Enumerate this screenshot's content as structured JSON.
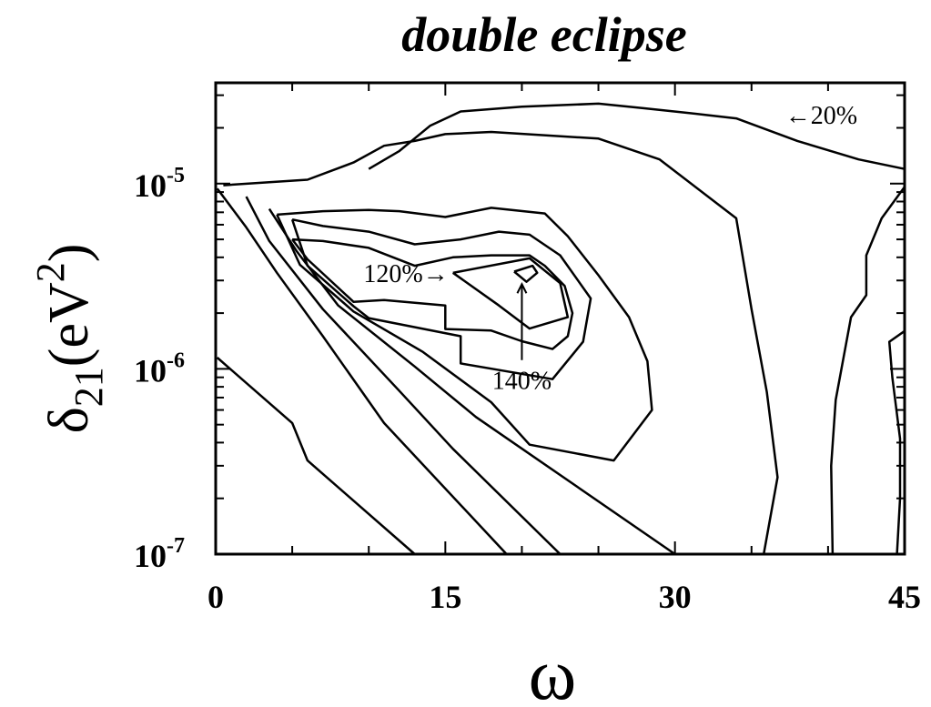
{
  "chart_data": {
    "type": "contour",
    "title": "double eclipse",
    "xlabel": "ω",
    "ylabel": {
      "base": "δ",
      "sub": "21",
      "unit_open": "(eV",
      "unit_sup": "2",
      "unit_close": ")"
    },
    "xlim": [
      0,
      45
    ],
    "ylim": [
      1e-07,
      3.5e-05
    ],
    "yscale": "log",
    "x_ticks": [
      {
        "value": 0,
        "label": "0"
      },
      {
        "value": 15,
        "label": "15"
      },
      {
        "value": 30,
        "label": "30"
      },
      {
        "value": 45,
        "label": "45"
      }
    ],
    "y_ticks": [
      {
        "value": 1e-07,
        "base": "10",
        "exp": "-7"
      },
      {
        "value": 1e-06,
        "base": "10",
        "exp": "-6"
      },
      {
        "value": 1e-05,
        "base": "10",
        "exp": "-5"
      }
    ],
    "contours": [
      {
        "name": "c1",
        "points": [
          [
            0.1,
            1.15e-06
          ],
          [
            5,
            5.1e-07
          ],
          [
            6,
            3.2e-07
          ],
          [
            13,
            1e-07
          ]
        ]
      },
      {
        "name": "c2",
        "points": [
          [
            0.1,
            9.4e-06
          ],
          [
            2,
            5.8e-06
          ],
          [
            4,
            3.3e-06
          ],
          [
            7,
            1.5e-06
          ],
          [
            11,
            5.1e-07
          ],
          [
            19,
            1e-07
          ]
        ]
      },
      {
        "name": "c3",
        "points": [
          [
            2,
            8.5e-06
          ],
          [
            3.5,
            4.9e-06
          ],
          [
            7,
            2.1e-06
          ],
          [
            12,
            7.6e-07
          ],
          [
            15.5,
            3.7e-07
          ],
          [
            22.5,
            1e-07
          ]
        ]
      },
      {
        "name": "c4",
        "points": [
          [
            3.5,
            7.3e-06
          ],
          [
            5.3,
            4.3e-06
          ],
          [
            8,
            2.2e-06
          ],
          [
            13,
            1.03e-06
          ],
          [
            17,
            5.5e-07
          ],
          [
            30,
            1e-07
          ]
        ]
      },
      {
        "name": "c5",
        "points": [
          [
            4,
            6.8e-06
          ],
          [
            5.5,
            3.65e-06
          ],
          [
            9,
            2.04e-06
          ],
          [
            13.5,
            1.24e-06
          ],
          [
            18,
            6.6e-07
          ],
          [
            20.5,
            3.9e-07
          ],
          [
            26,
            3.2e-07
          ],
          [
            28.5,
            6e-07
          ],
          [
            28.2,
            1.1e-06
          ],
          [
            27,
            1.9e-06
          ],
          [
            25,
            3.2e-06
          ],
          [
            23,
            5.2e-06
          ],
          [
            21.5,
            6.9e-06
          ],
          [
            18,
            7.4e-06
          ],
          [
            15,
            6.6e-06
          ],
          [
            12,
            7.1e-06
          ],
          [
            10,
            7.2e-06
          ],
          [
            7,
            7.1e-06
          ],
          [
            4,
            6.8e-06
          ]
        ]
      },
      {
        "name": "c6",
        "points": [
          [
            5,
            6.4e-06
          ],
          [
            6,
            3.6e-06
          ],
          [
            9,
            2.18e-06
          ],
          [
            10,
            1.88e-06
          ],
          [
            16,
            1.5e-06
          ],
          [
            16,
            1.07e-06
          ],
          [
            22,
            8.8e-07
          ],
          [
            24,
            1.4e-06
          ],
          [
            24.5,
            2.4e-06
          ],
          [
            22.5,
            4.1e-06
          ],
          [
            20.5,
            5.3e-06
          ],
          [
            18.5,
            5.5e-06
          ],
          [
            16,
            5e-06
          ],
          [
            13,
            4.7e-06
          ],
          [
            10,
            5.5e-06
          ],
          [
            7,
            5.9e-06
          ],
          [
            5,
            6.4e-06
          ]
        ]
      },
      {
        "name": "c7",
        "points": [
          [
            5,
            5e-06
          ],
          [
            6,
            3.9e-06
          ],
          [
            9,
            2.3e-06
          ],
          [
            11,
            2.35e-06
          ],
          [
            15,
            2.2e-06
          ],
          [
            15,
            1.64e-06
          ],
          [
            18,
            1.61e-06
          ],
          [
            20,
            1.41e-06
          ],
          [
            22,
            1.28e-06
          ],
          [
            23,
            1.5e-06
          ],
          [
            23.3,
            2e-06
          ],
          [
            22.8,
            2.8e-06
          ],
          [
            21.5,
            3.6e-06
          ],
          [
            20.5,
            4.1e-06
          ],
          [
            18,
            4.1e-06
          ],
          [
            15.5,
            4e-06
          ],
          [
            13,
            3.6e-06
          ],
          [
            10,
            4.5e-06
          ],
          [
            7,
            4.9e-06
          ],
          [
            5,
            5e-06
          ]
        ]
      },
      {
        "name": "c8",
        "points": [
          [
            15.5,
            3.3e-06
          ],
          [
            20.5,
            3.95e-06
          ],
          [
            22.5,
            2.9e-06
          ],
          [
            23,
            1.9e-06
          ],
          [
            20.5,
            1.65e-06
          ],
          [
            18.5,
            2.2e-06
          ],
          [
            15.5,
            3.3e-06
          ]
        ]
      },
      {
        "name": "c9",
        "points": [
          [
            19.5,
            3.35e-06
          ],
          [
            20.7,
            3.6e-06
          ],
          [
            21,
            3.3e-06
          ],
          [
            20.3,
            2.95e-06
          ],
          [
            19.5,
            3.35e-06
          ]
        ]
      },
      {
        "name": "c10",
        "points": [
          [
            0.5,
            9.8e-06
          ],
          [
            6,
            1.05e-05
          ],
          [
            9,
            1.3e-05
          ],
          [
            11,
            1.6e-05
          ],
          [
            13,
            1.7e-05
          ],
          [
            15,
            1.85e-05
          ],
          [
            18,
            1.9e-05
          ],
          [
            25,
            1.75e-05
          ],
          [
            29,
            1.35e-05
          ],
          [
            34,
            6.5e-06
          ],
          [
            35,
            2.1e-06
          ],
          [
            36,
            7.5e-07
          ],
          [
            36.7,
            2.6e-07
          ],
          [
            35.8,
            1e-07
          ]
        ]
      },
      {
        "name": "c11",
        "points": [
          [
            10,
            1.2e-05
          ],
          [
            12,
            1.5e-05
          ],
          [
            14,
            2.05e-05
          ],
          [
            16,
            2.45e-05
          ],
          [
            20,
            2.6e-05
          ],
          [
            25,
            2.7e-05
          ],
          [
            28,
            2.55e-05
          ],
          [
            31,
            2.4e-05
          ],
          [
            34,
            2.25e-05
          ],
          [
            38,
            1.7e-05
          ],
          [
            42,
            1.35e-05
          ],
          [
            45,
            1.2e-05
          ]
        ]
      },
      {
        "name": "c12",
        "points": [
          [
            45,
            9.6e-06
          ],
          [
            43.5,
            6.5e-06
          ],
          [
            42.5,
            4.1e-06
          ],
          [
            42.5,
            2.5e-06
          ],
          [
            41.5,
            1.9e-06
          ],
          [
            40.5,
            6.8e-07
          ],
          [
            40.2,
            3e-07
          ],
          [
            40.3,
            1e-07
          ]
        ]
      },
      {
        "name": "c13",
        "points": [
          [
            45,
            1.6e-06
          ],
          [
            44,
            1.4e-06
          ],
          [
            44.2,
            9e-07
          ],
          [
            44.7,
            4.2e-07
          ],
          [
            44.7,
            2e-07
          ],
          [
            44.5,
            1e-07
          ]
        ]
      }
    ],
    "annotations": [
      {
        "text": "←20%",
        "x": 37.2,
        "y": 2.35e-05
      },
      {
        "text": "120%→",
        "x": 15.2,
        "y": 3.3e-06
      },
      {
        "text": "140%",
        "x": 20,
        "y": 8.7e-07
      }
    ],
    "grid": false
  }
}
